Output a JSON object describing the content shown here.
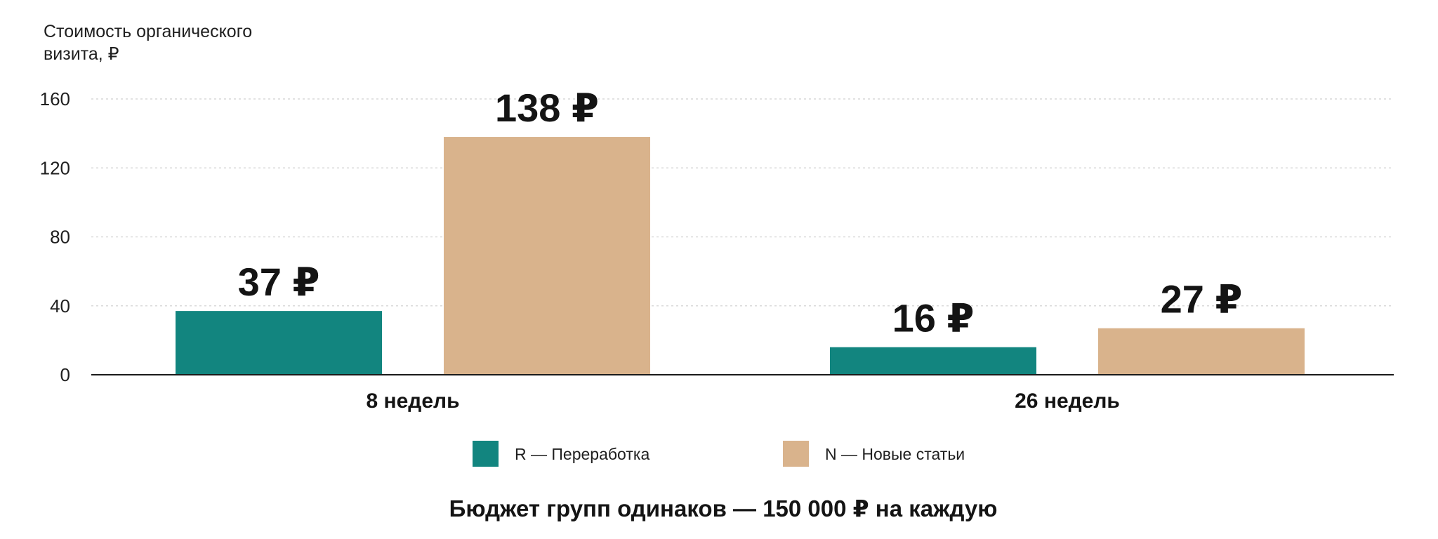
{
  "chart_data": {
    "type": "bar",
    "ylabel_lines": [
      "Стоимость органического",
      "визита, ₽"
    ],
    "categories": [
      "8 недель",
      "26 недель"
    ],
    "series": [
      {
        "name": "R — Переработка",
        "values": [
          37,
          16
        ],
        "labels": [
          "37 ₽",
          "16 ₽"
        ],
        "color": "#12857f"
      },
      {
        "name": "N — Новые статьи",
        "values": [
          138,
          27
        ],
        "labels": [
          "138 ₽",
          "27 ₽"
        ],
        "color": "#d9b38c"
      }
    ],
    "yticks": [
      0,
      40,
      80,
      120,
      160
    ],
    "ylim": [
      0,
      160
    ],
    "grid": true,
    "legend_position": "bottom",
    "footer": "Бюджет групп одинаков — 150 000 ₽ на каждую"
  }
}
